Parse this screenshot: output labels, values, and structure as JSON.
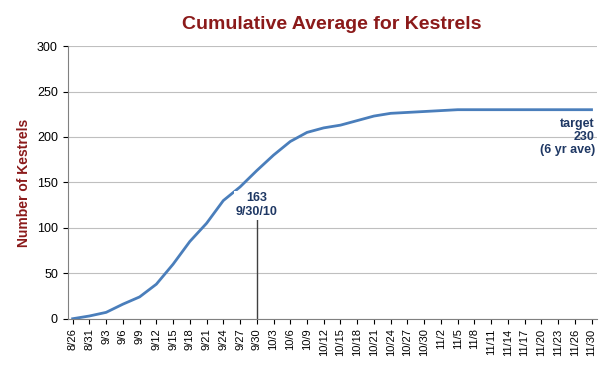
{
  "chart_data": {
    "type": "line",
    "title": "Cumulative Average for Kestrels",
    "y_label": "Number of Kestrels",
    "categories": [
      "8/26",
      "8/31",
      "9/3",
      "9/6",
      "9/9",
      "9/12",
      "9/15",
      "9/18",
      "9/21",
      "9/24",
      "9/27",
      "9/30",
      "10/3",
      "10/6",
      "10/9",
      "10/12",
      "10/15",
      "10/18",
      "10/21",
      "10/24",
      "10/27",
      "10/30",
      "11/2",
      "11/5",
      "11/8",
      "11/11",
      "11/14",
      "11/17",
      "11/20",
      "11/23",
      "11/26",
      "11/30"
    ],
    "values": [
      0,
      3,
      7,
      16,
      24,
      38,
      60,
      85,
      105,
      130,
      145,
      163,
      180,
      195,
      205,
      210,
      213,
      218,
      223,
      226,
      227,
      228,
      229,
      230,
      230,
      230,
      230,
      230,
      230,
      230,
      230,
      230
    ],
    "color": "#4a7ebb",
    "ylim": [
      0,
      300
    ],
    "yticks": [
      0,
      50,
      100,
      150,
      200,
      250,
      300
    ],
    "grid": true,
    "annotations": [
      {
        "text": "163\n9/30/10",
        "x": "9/30",
        "y": 163
      },
      {
        "text": "target\n230\n(6 yr ave)",
        "x": "11/30",
        "y": 230
      }
    ]
  }
}
